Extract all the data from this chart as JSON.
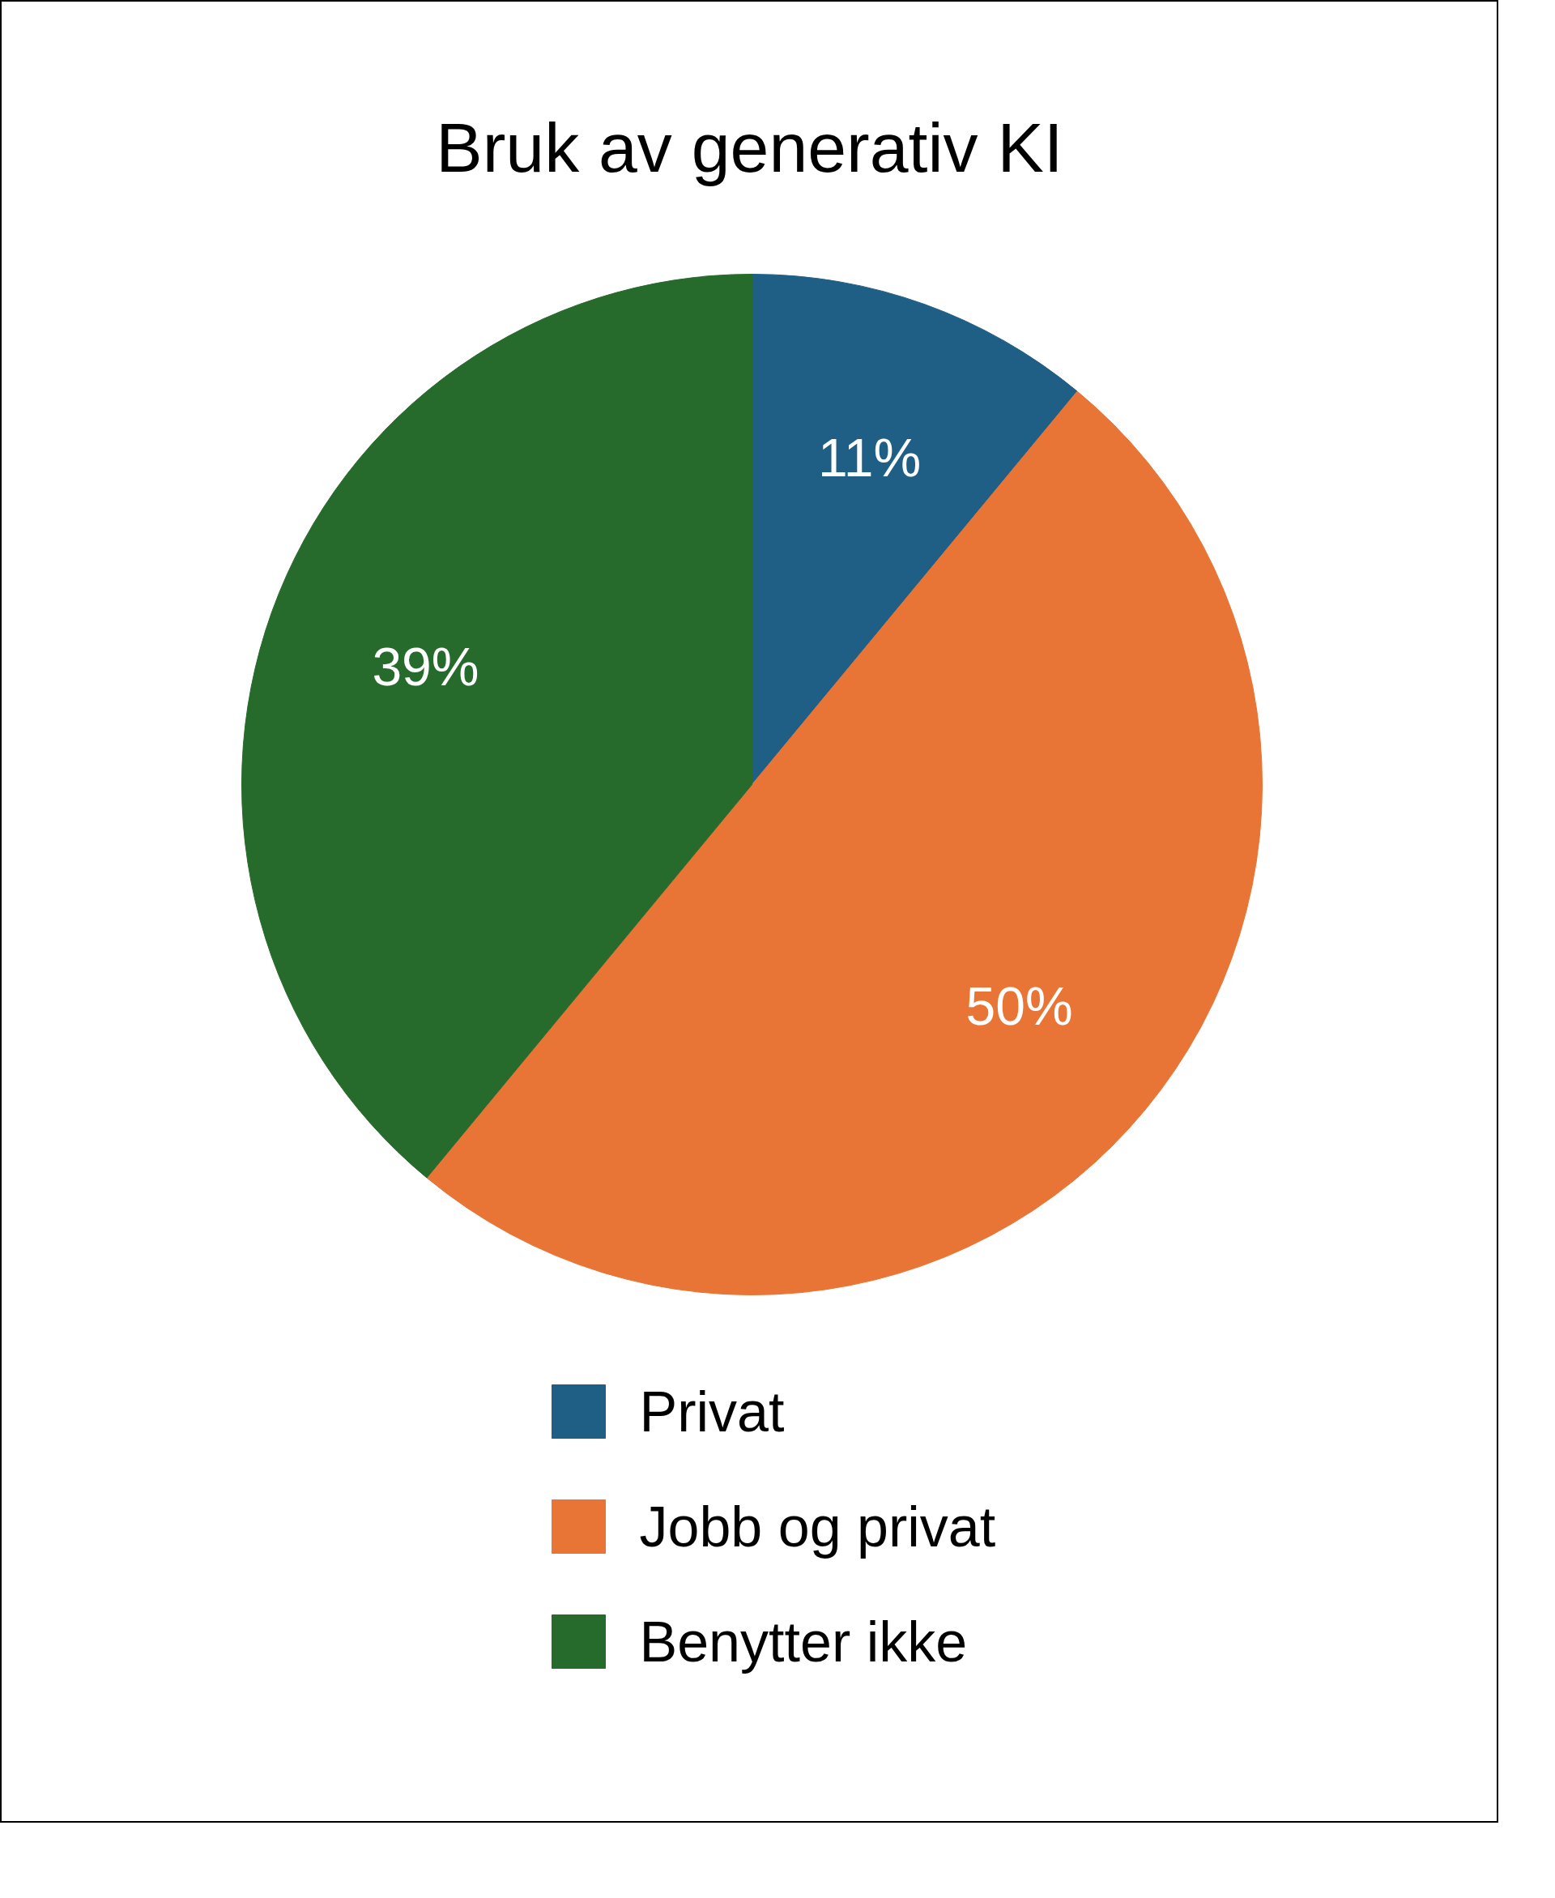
{
  "chart_data": {
    "type": "pie",
    "title": "Bruk av generativ KI",
    "categories": [
      "Privat",
      "Jobb og privat",
      "Benytter ikke"
    ],
    "values": [
      11,
      50,
      39
    ],
    "colors": [
      "#1f5f85",
      "#e87436",
      "#276b2c"
    ],
    "value_labels": [
      "11%",
      "50%",
      "39%"
    ],
    "legend": "bottom"
  }
}
